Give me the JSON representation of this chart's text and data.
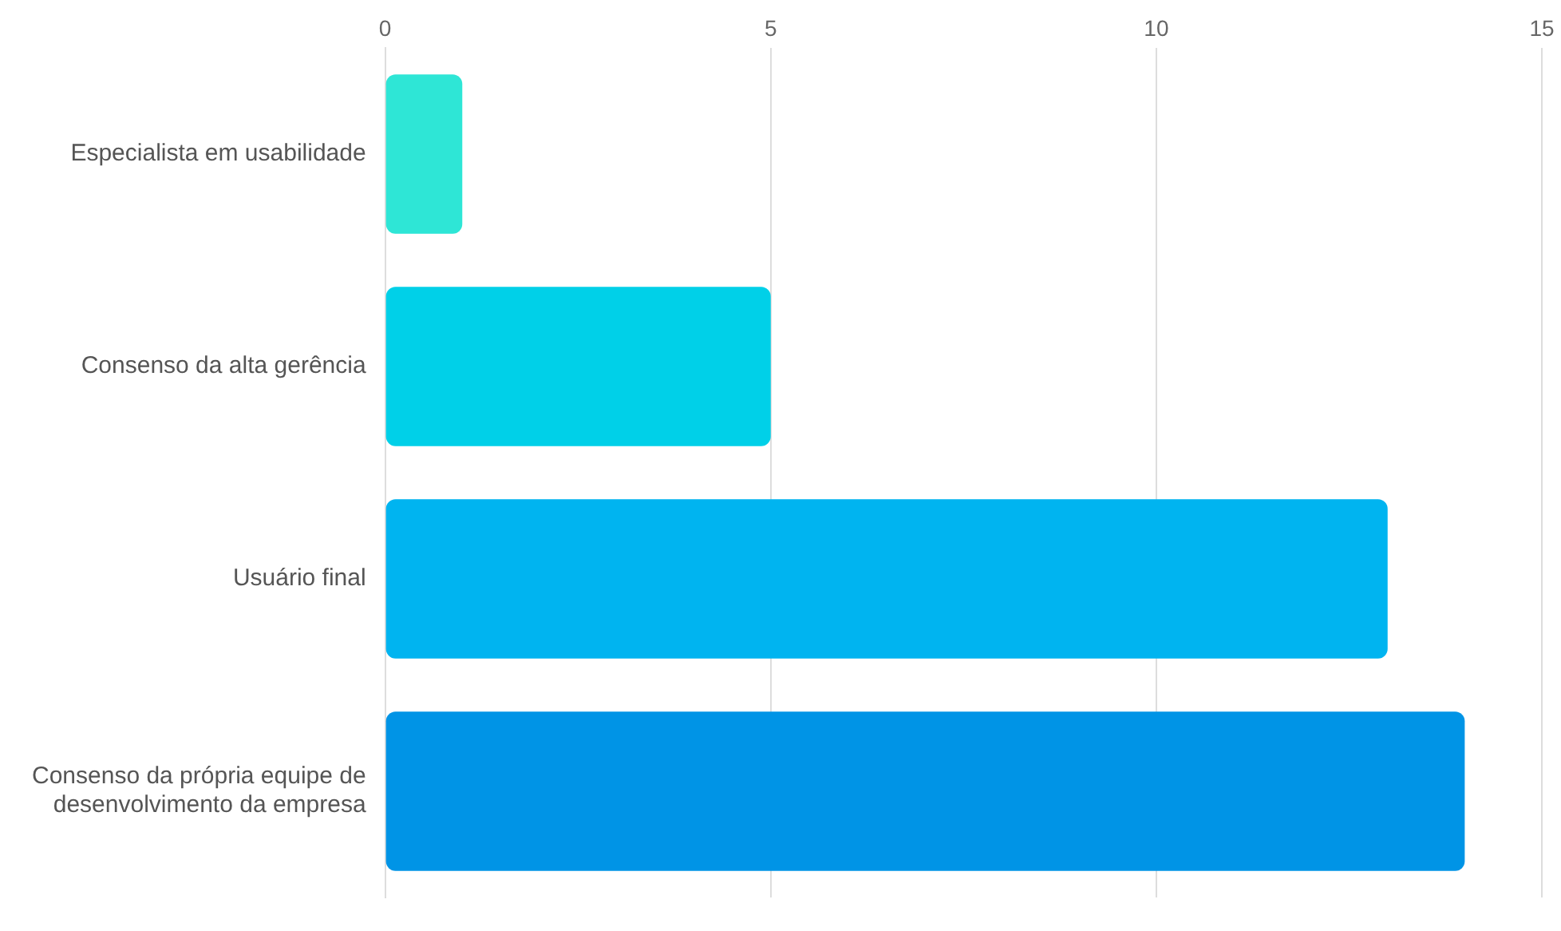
{
  "chart_data": {
    "type": "bar",
    "orientation": "horizontal",
    "categories": [
      "Especialista em usabilidade",
      "Consenso da alta gerência",
      "Usuário final",
      "Consenso da própria equipe de desenvolvimento da empresa"
    ],
    "values": [
      1,
      5,
      13,
      14
    ],
    "colors": [
      "#2ee6d6",
      "#00d0e8",
      "#00b4f0",
      "#0094e6"
    ],
    "xlim": [
      0,
      15
    ],
    "xticks": [
      0,
      5,
      10,
      15
    ],
    "grid": "x"
  }
}
